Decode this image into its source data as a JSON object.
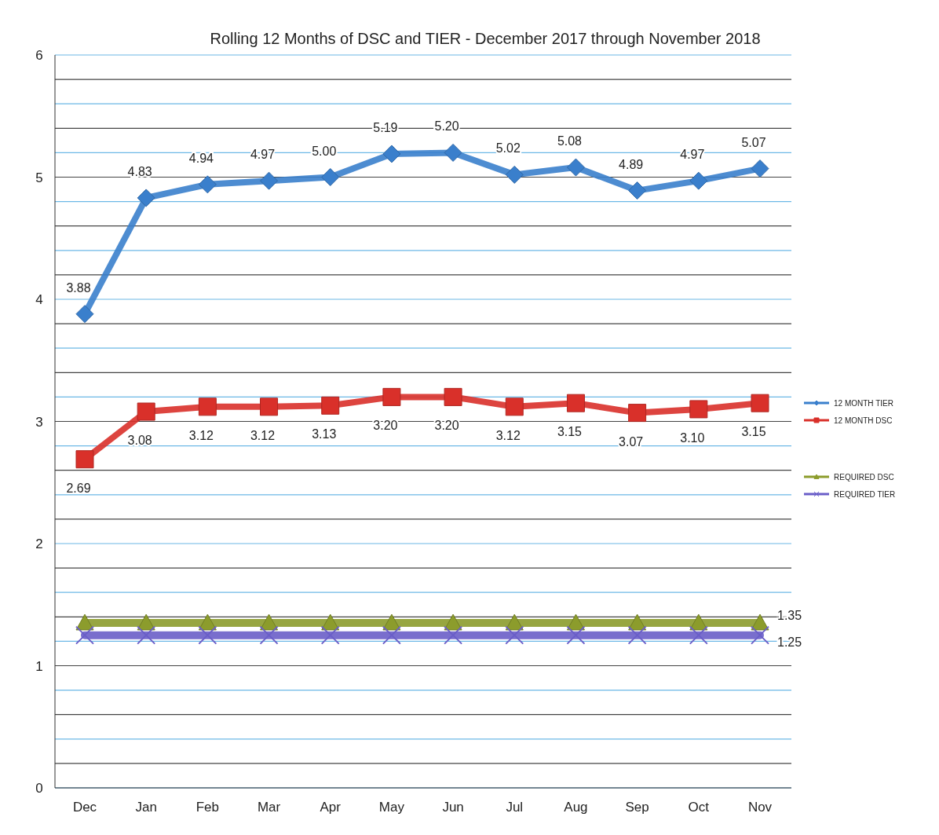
{
  "chart_data": {
    "type": "line",
    "title": "Rolling 12 Months of DSC and TIER  - December 2017 through November 2018",
    "categories": [
      "Dec",
      "Jan",
      "Feb",
      "Mar",
      "Apr",
      "May",
      "Jun",
      "Jul",
      "Aug",
      "Sep",
      "Oct",
      "Nov"
    ],
    "series": [
      {
        "name": "12 MONTH TIER",
        "color": "#3a7fcc",
        "marker": "diamond",
        "values": [
          3.88,
          4.83,
          4.94,
          4.97,
          5.0,
          5.19,
          5.2,
          5.02,
          5.08,
          4.89,
          4.97,
          5.07
        ],
        "value_labels": [
          "3.88",
          "4.83",
          "4.94",
          "4.97",
          "5.00",
          "5.19",
          "5.20",
          "5.02",
          "5.08",
          "4.89",
          "4.97",
          "5.07"
        ]
      },
      {
        "name": "12 MONTH DSC",
        "color": "#d9302a",
        "marker": "square",
        "values": [
          2.69,
          3.08,
          3.12,
          3.12,
          3.13,
          3.2,
          3.2,
          3.12,
          3.15,
          3.07,
          3.1,
          3.15
        ],
        "value_labels": [
          "2.69",
          "3.08",
          "3.12",
          "3.12",
          "3.13",
          "3.20",
          "3.20",
          "3.12",
          "3.15",
          "3.07",
          "3.10",
          "3.15"
        ]
      },
      {
        "name": "REQUIRED DSC",
        "color": "#8c9c2c",
        "marker": "triangle",
        "values": [
          1.35,
          1.35,
          1.35,
          1.35,
          1.35,
          1.35,
          1.35,
          1.35,
          1.35,
          1.35,
          1.35,
          1.35
        ],
        "value_labels": [
          null,
          null,
          null,
          null,
          null,
          null,
          null,
          null,
          null,
          null,
          null,
          "1.35"
        ]
      },
      {
        "name": "REQUIRED TIER",
        "color": "#6a5ec8",
        "marker": "cross",
        "values": [
          1.25,
          1.25,
          1.25,
          1.25,
          1.25,
          1.25,
          1.25,
          1.25,
          1.25,
          1.25,
          1.25,
          1.25
        ],
        "value_labels": [
          null,
          null,
          null,
          null,
          null,
          null,
          null,
          null,
          null,
          null,
          null,
          "1.25"
        ]
      }
    ],
    "ylim": [
      0,
      6
    ],
    "yticks": [
      0,
      {
        "value": 0.2,
        "label": null
      },
      {
        "value": 0.4,
        "label": null
      },
      {
        "value": 0.6,
        "label": null
      },
      {
        "value": 0.8,
        "label": null
      },
      1,
      {
        "value": 1.2,
        "label": null
      },
      {
        "value": 1.4,
        "label": null
      },
      {
        "value": 1.6,
        "label": null
      },
      {
        "value": 1.8,
        "label": null
      },
      2,
      {
        "value": 2.2,
        "label": null
      },
      {
        "value": 2.4,
        "label": null
      },
      {
        "value": 2.6,
        "label": null
      },
      {
        "value": 2.8,
        "label": null
      },
      3,
      {
        "value": 3.2,
        "label": null
      },
      {
        "value": 3.4,
        "label": null
      },
      {
        "value": 3.6,
        "label": null
      },
      {
        "value": 3.8,
        "label": null
      },
      4,
      {
        "value": 4.2,
        "label": null
      },
      {
        "value": 4.4,
        "label": null
      },
      {
        "value": 4.6,
        "label": null
      },
      {
        "value": 4.8,
        "label": null
      },
      5,
      {
        "value": 5.2,
        "label": null
      },
      {
        "value": 5.4,
        "label": null
      },
      {
        "value": 5.6,
        "label": null
      },
      {
        "value": 5.8,
        "label": null
      },
      6
    ],
    "grid": "y",
    "legend": "right",
    "line_style": "solid"
  }
}
